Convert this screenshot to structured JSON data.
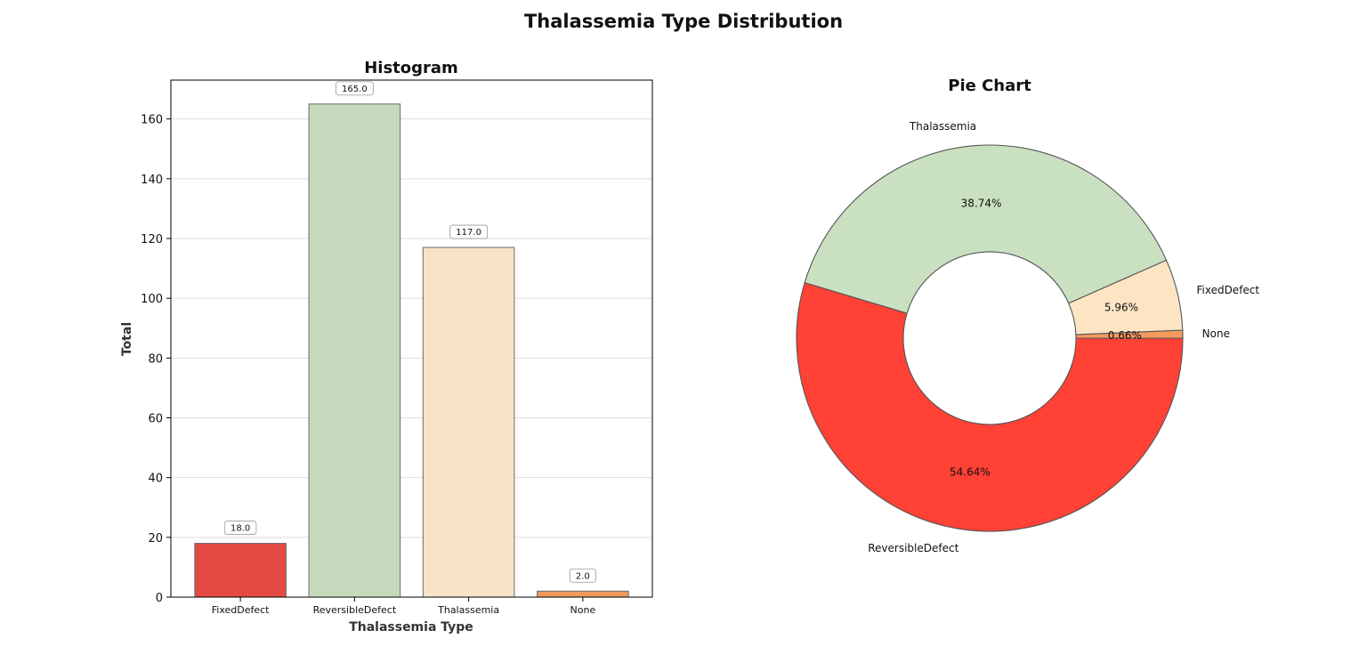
{
  "figure_title": "Thalassemia Type Distribution",
  "chart_data": [
    {
      "type": "bar",
      "title": "Histogram",
      "xlabel": "Thalassemia Type",
      "ylabel": "Total",
      "categories": [
        "FixedDefect",
        "ReversibleDefect",
        "Thalassemia",
        "None"
      ],
      "values": [
        18,
        165,
        117,
        2
      ],
      "data_labels": [
        "18.0",
        "165.0",
        "117.0",
        "2.0"
      ],
      "colors": [
        "#e34a44",
        "#c6dbbe",
        "#f6e3c8",
        "#ee9a5c"
      ],
      "ylim": [
        0,
        173
      ],
      "yticks": [
        0,
        20,
        40,
        60,
        80,
        100,
        120,
        140,
        160
      ],
      "grid": "horizontal"
    },
    {
      "type": "pie",
      "title": "Pie Chart",
      "donut": true,
      "labels": [
        "None",
        "FixedDefect",
        "Thalassemia",
        "ReversibleDefect"
      ],
      "values": [
        0.66,
        5.96,
        38.74,
        54.64
      ],
      "pct_labels": [
        "0.66%",
        "5.96%",
        "38.74%",
        "54.64%"
      ],
      "colors": [
        "#f59b5f",
        "#fde5c4",
        "#c9e1c1",
        "#ff4136"
      ],
      "legend": "none"
    }
  ]
}
